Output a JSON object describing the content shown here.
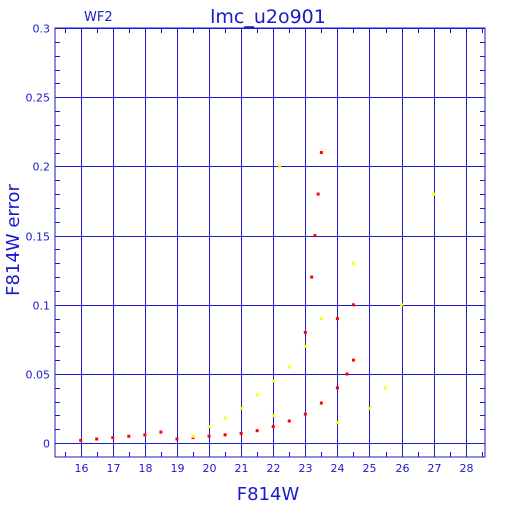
{
  "chart_data": {
    "type": "scatter",
    "title": "lmc_u2o901",
    "corner_label": "WF2",
    "xlabel": "F814W",
    "ylabel": "F814W error",
    "xlim": [
      15.2,
      28.6
    ],
    "ylim": [
      -0.01,
      0.3
    ],
    "xticks": [
      "16",
      "17",
      "18",
      "19",
      "20",
      "21",
      "22",
      "23",
      "24",
      "25",
      "26",
      "27",
      "28"
    ],
    "yticks": [
      "0",
      "0.05",
      "0.1",
      "0.15",
      "0.2",
      "0.25",
      "0.3"
    ],
    "grid": true,
    "colors": {
      "axis": "#1a1acc",
      "grid": "#1a1acc",
      "series_red": "#ff0000",
      "series_yellow": "#ffff00"
    },
    "series": [
      {
        "color": "#ff0000",
        "points": [
          [
            16.0,
            0.002
          ],
          [
            16.5,
            0.003
          ],
          [
            17.0,
            0.004
          ],
          [
            17.5,
            0.005
          ],
          [
            18.0,
            0.006
          ],
          [
            18.5,
            0.008
          ],
          [
            19.0,
            0.003
          ],
          [
            19.5,
            0.004
          ],
          [
            20.0,
            0.005
          ],
          [
            20.5,
            0.006
          ],
          [
            21.0,
            0.007
          ],
          [
            21.5,
            0.009
          ],
          [
            22.0,
            0.012
          ],
          [
            22.5,
            0.016
          ],
          [
            23.0,
            0.021
          ],
          [
            23.5,
            0.029
          ],
          [
            24.0,
            0.04
          ],
          [
            24.3,
            0.05
          ],
          [
            24.5,
            0.06
          ],
          [
            23.2,
            0.12
          ],
          [
            23.3,
            0.15
          ],
          [
            23.4,
            0.18
          ],
          [
            23.5,
            0.21
          ],
          [
            23.0,
            0.08
          ],
          [
            24.0,
            0.09
          ],
          [
            24.5,
            0.1
          ]
        ]
      },
      {
        "color": "#ffff00",
        "points": [
          [
            19.5,
            0.005
          ],
          [
            20.0,
            0.012
          ],
          [
            20.5,
            0.018
          ],
          [
            21.0,
            0.025
          ],
          [
            21.5,
            0.035
          ],
          [
            22.0,
            0.045
          ],
          [
            22.5,
            0.055
          ],
          [
            23.0,
            0.07
          ],
          [
            23.5,
            0.09
          ],
          [
            22.2,
            0.2
          ],
          [
            24.5,
            0.13
          ],
          [
            26.0,
            0.1
          ],
          [
            27.0,
            0.18
          ],
          [
            22.0,
            0.02
          ],
          [
            24.0,
            0.015
          ],
          [
            25.0,
            0.025
          ],
          [
            25.5,
            0.04
          ]
        ]
      }
    ]
  }
}
